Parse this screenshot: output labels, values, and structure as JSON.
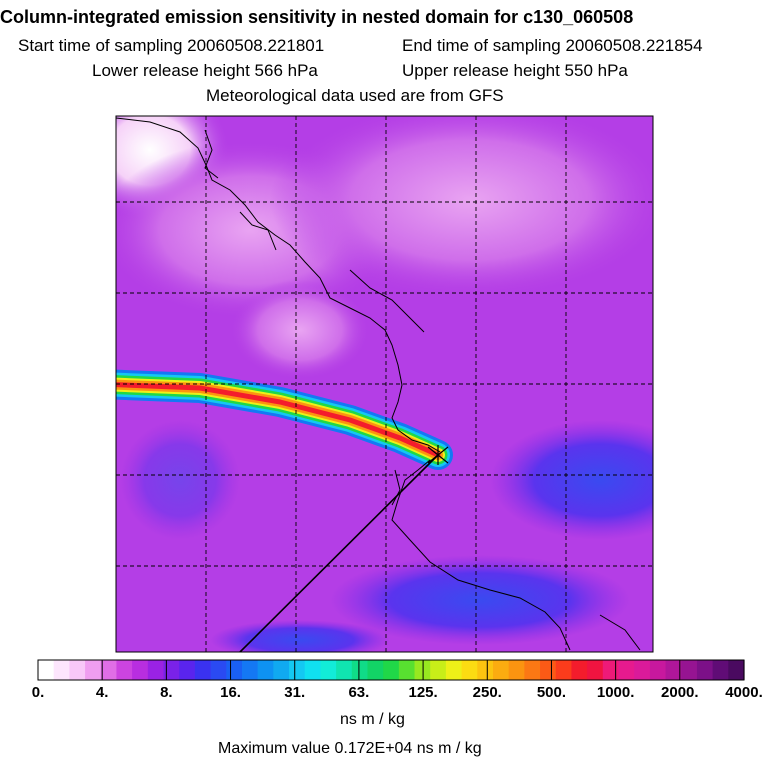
{
  "header": {
    "title": "Column-integrated emission sensitivity in nested domain for c130_060508",
    "start": "Start time of sampling 20060508.221801",
    "end": "End time of sampling 20060508.221854",
    "lower": "Lower release height  566 hPa",
    "upper": "Upper release height  550 hPa",
    "met": "Meteorological data used are from GFS"
  },
  "colorbar": {
    "units": "ns m / kg",
    "max_text": "Maximum value  0.172E+04 ns m / kg",
    "tick_labels": [
      "0.",
      "4.",
      "8.",
      "16.",
      "31.",
      "63.",
      "125.",
      "250.",
      "500.",
      "1000.",
      "2000.",
      "4000."
    ],
    "colors": [
      "#ffffff",
      "#fde6fd",
      "#f8c8f8",
      "#ef9ef0",
      "#e06ee6",
      "#cc44e0",
      "#b82ee0",
      "#9a22e4",
      "#7a22e8",
      "#5a24ee",
      "#3a32f0",
      "#2a4af2",
      "#1a60f4",
      "#1478f4",
      "#0e92f2",
      "#10aaf0",
      "#14c8f2",
      "#10e0f0",
      "#12ecd8",
      "#10e4b0",
      "#10dc88",
      "#12d466",
      "#20d848",
      "#58e030",
      "#98e820",
      "#c8ee18",
      "#eef018",
      "#fcdc12",
      "#fcc410",
      "#fcac10",
      "#fc9410",
      "#fc7814",
      "#fc5a16",
      "#fc3c1c",
      "#f41c2c",
      "#f01440",
      "#ee1a78",
      "#e61a8e",
      "#da1a9a",
      "#c8189e",
      "#b0169a",
      "#961492",
      "#7c1088",
      "#600c76",
      "#4a0a60"
    ]
  },
  "chart_data": {
    "type": "heatmap",
    "title": "Column-integrated emission sensitivity in nested domain for c130_060508",
    "colorbar_label": "ns m / kg",
    "colorbar_ticks": [
      0,
      4,
      8,
      16,
      31,
      63,
      125,
      250,
      500,
      1000,
      2000,
      4000
    ],
    "max_value": 1720,
    "background_level": 8,
    "plume": {
      "source_end": "east",
      "center_line": [
        [
          0.0,
          0.3
        ],
        [
          0.14,
          0.31
        ],
        [
          0.3,
          0.38
        ],
        [
          0.44,
          0.47
        ],
        [
          0.56,
          0.58
        ],
        [
          0.6,
          0.64
        ]
      ],
      "peak_value": 1720
    },
    "grid": true,
    "coastlines": true
  }
}
